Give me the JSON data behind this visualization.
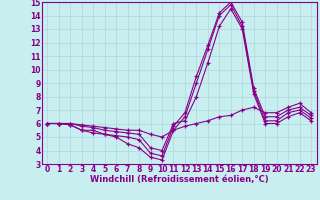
{
  "title": "",
  "xlabel": "Windchill (Refroidissement éolien,°C)",
  "ylabel": "",
  "bg_color": "#c8eef0",
  "grid_color": "#aad8dc",
  "line_color": "#880088",
  "marker": "+",
  "xlim": [
    -0.5,
    23.5
  ],
  "ylim": [
    3,
    15
  ],
  "yticks": [
    3,
    4,
    5,
    6,
    7,
    8,
    9,
    10,
    11,
    12,
    13,
    14,
    15
  ],
  "xticks": [
    0,
    1,
    2,
    3,
    4,
    5,
    6,
    7,
    8,
    9,
    10,
    11,
    12,
    13,
    14,
    15,
    16,
    17,
    18,
    19,
    20,
    21,
    22,
    23
  ],
  "curves": [
    [
      6.0,
      6.0,
      5.9,
      5.5,
      5.5,
      5.2,
      5.0,
      4.5,
      4.2,
      3.5,
      3.3,
      5.5,
      6.5,
      9.0,
      11.5,
      14.0,
      14.8,
      13.2,
      8.4,
      6.2,
      6.2,
      6.8,
      7.0,
      6.4
    ],
    [
      6.0,
      6.0,
      5.9,
      5.5,
      5.3,
      5.2,
      5.1,
      5.0,
      4.8,
      3.8,
      3.6,
      5.8,
      6.8,
      9.5,
      11.8,
      14.2,
      15.0,
      13.5,
      8.6,
      6.5,
      6.5,
      7.0,
      7.2,
      6.6
    ],
    [
      6.0,
      6.0,
      6.0,
      5.8,
      5.7,
      5.5,
      5.4,
      5.3,
      5.2,
      4.2,
      4.0,
      6.0,
      6.2,
      8.0,
      10.5,
      13.2,
      14.5,
      13.0,
      8.2,
      6.0,
      6.0,
      6.5,
      6.8,
      6.2
    ],
    [
      6.0,
      6.0,
      6.0,
      5.9,
      5.8,
      5.7,
      5.6,
      5.5,
      5.5,
      5.2,
      5.0,
      5.5,
      5.8,
      6.0,
      6.2,
      6.5,
      6.6,
      7.0,
      7.2,
      6.8,
      6.8,
      7.2,
      7.5,
      6.8
    ]
  ],
  "figsize": [
    3.2,
    2.0
  ],
  "dpi": 100,
  "tick_fontsize": 5.5,
  "xlabel_fontsize": 6,
  "linewidth": 0.8,
  "markersize": 3
}
